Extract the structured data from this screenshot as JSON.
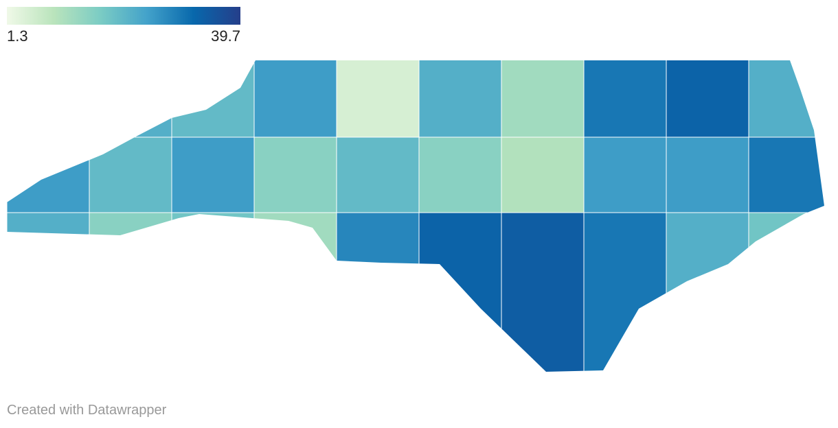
{
  "chart_data": {
    "type": "choropleth",
    "zlim": [
      1.3,
      39.7
    ],
    "legend_ticks": [
      1.3,
      39.7
    ],
    "colors": [
      "#f0f9e8",
      "#bae4bc",
      "#7bccc4",
      "#43a2ca",
      "#0868ac",
      "#253e8a"
    ],
    "values": [
      25,
      22,
      20,
      25,
      5,
      22,
      12,
      30,
      33,
      22,
      25,
      20,
      25,
      15,
      20,
      15,
      10,
      25,
      25,
      30,
      22,
      15,
      18,
      12,
      28,
      33,
      34,
      30,
      22,
      18
    ]
  },
  "footer": "Created with Datawrapper"
}
